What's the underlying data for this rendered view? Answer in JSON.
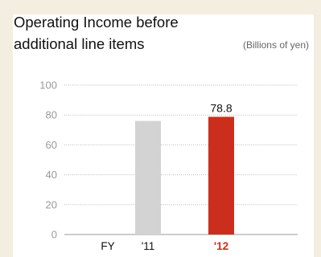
{
  "chart_data": {
    "type": "bar",
    "title": [
      "Operating Income before",
      "additional line items"
    ],
    "unit": "(Billions of yen)",
    "axis_prefix": "FY",
    "categories": [
      "'11",
      "'12"
    ],
    "values": [
      76,
      78.8
    ],
    "data_labels": [
      "",
      "78.8"
    ],
    "colors": [
      "#d3d3d3",
      "#cc2e1e"
    ],
    "category_label_colors": [
      "#111111",
      "#cc2e1e"
    ],
    "highlight": "'12",
    "ylim": [
      0,
      100
    ],
    "yticks": [
      0,
      20,
      40,
      60,
      80,
      100
    ],
    "grid": true
  }
}
